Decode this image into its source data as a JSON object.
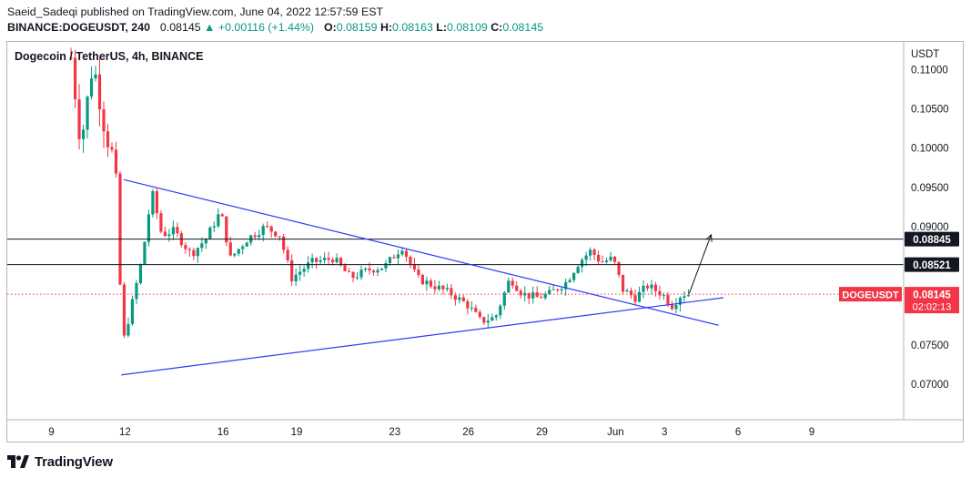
{
  "header": {
    "publisher_line": "Saeid_Sadeqi published on TradingView.com, June 04, 2022 12:57:59 EST",
    "symbol_interval": "BINANCE:DOGEUSDT, 240",
    "last_price": "0.08145",
    "change_arrow": "▲",
    "change": "+0.00116 (+1.44%)",
    "o_label": "O:",
    "o_value": "0.08159",
    "h_label": "H:",
    "h_value": "0.08163",
    "l_label": "L:",
    "l_value": "0.08109",
    "c_label": "C:",
    "c_value": "0.08145"
  },
  "chart_title": "Dogecoin / TetherUS, 4h, BINANCE",
  "footer": {
    "brand": "TradingView"
  },
  "colors": {
    "up": "#089981",
    "down": "#f23645",
    "trendline": "#2f3bf5",
    "hline": "#131722",
    "price_line": "#f23645",
    "axis_text": "#131722",
    "border": "#b2b5be"
  },
  "chart_data": {
    "type": "candlestick",
    "title": "Dogecoin / TetherUS, 4h, BINANCE",
    "currency_label": "USDT",
    "y_ticks": [
      "0.11000",
      "0.10500",
      "0.10000",
      "0.09500",
      "0.09000",
      "0.07500",
      "0.07000"
    ],
    "y_range": [
      0.0655,
      0.1135
    ],
    "x_ticks": [
      {
        "label": "9",
        "day": 9
      },
      {
        "label": "12",
        "day": 12
      },
      {
        "label": "16",
        "day": 16
      },
      {
        "label": "19",
        "day": 19
      },
      {
        "label": "23",
        "day": 23
      },
      {
        "label": "26",
        "day": 26
      },
      {
        "label": "29",
        "day": 29
      },
      {
        "label": "Jun",
        "day": 32
      },
      {
        "label": "3",
        "day": 34
      },
      {
        "label": "6",
        "day": 37
      },
      {
        "label": "9",
        "day": 40
      }
    ],
    "x_range": [
      7.2,
      43.75
    ],
    "horizontal_levels": [
      {
        "label": "0.08845",
        "value": 0.08845
      },
      {
        "label": "0.08521",
        "value": 0.08521
      }
    ],
    "current_price": {
      "label": "0.08145",
      "value": 0.08145,
      "symbol": "DOGEUSDT",
      "countdown": "02:02:13"
    },
    "trendlines": [
      {
        "name": "upper",
        "from": {
          "day": 11.95,
          "price": 0.096
        },
        "to": {
          "day": 36.2,
          "price": 0.0775
        }
      },
      {
        "name": "lower",
        "from": {
          "day": 11.85,
          "price": 0.0712
        },
        "to": {
          "day": 36.4,
          "price": 0.081
        }
      }
    ],
    "arrow": {
      "from": {
        "day": 35.0,
        "price": 0.0815
      },
      "to": {
        "day": 35.9,
        "price": 0.089
      }
    },
    "anchors": [
      {
        "day": 9.8,
        "price": 0.1115
      },
      {
        "day": 10.2,
        "price": 0.1005
      },
      {
        "day": 10.7,
        "price": 0.111
      },
      {
        "day": 11.2,
        "price": 0.102
      },
      {
        "day": 11.6,
        "price": 0.098
      },
      {
        "day": 11.9,
        "price": 0.075
      },
      {
        "day": 12.2,
        "price": 0.079
      },
      {
        "day": 12.7,
        "price": 0.086
      },
      {
        "day": 13.1,
        "price": 0.0945
      },
      {
        "day": 13.5,
        "price": 0.089
      },
      {
        "day": 14.0,
        "price": 0.0895
      },
      {
        "day": 14.7,
        "price": 0.0865
      },
      {
        "day": 15.3,
        "price": 0.0885
      },
      {
        "day": 15.9,
        "price": 0.092
      },
      {
        "day": 16.3,
        "price": 0.086
      },
      {
        "day": 17.0,
        "price": 0.0885
      },
      {
        "day": 17.7,
        "price": 0.09
      },
      {
        "day": 18.3,
        "price": 0.089
      },
      {
        "day": 18.8,
        "price": 0.0835
      },
      {
        "day": 19.6,
        "price": 0.0855
      },
      {
        "day": 20.5,
        "price": 0.086
      },
      {
        "day": 21.2,
        "price": 0.0835
      },
      {
        "day": 21.9,
        "price": 0.0845
      },
      {
        "day": 22.6,
        "price": 0.085
      },
      {
        "day": 23.3,
        "price": 0.0875
      },
      {
        "day": 23.9,
        "price": 0.0835
      },
      {
        "day": 24.6,
        "price": 0.0825
      },
      {
        "day": 25.3,
        "price": 0.0815
      },
      {
        "day": 26.0,
        "price": 0.08
      },
      {
        "day": 26.5,
        "price": 0.078
      },
      {
        "day": 27.1,
        "price": 0.0785
      },
      {
        "day": 27.7,
        "price": 0.0835
      },
      {
        "day": 28.2,
        "price": 0.0815
      },
      {
        "day": 28.8,
        "price": 0.081
      },
      {
        "day": 29.3,
        "price": 0.0815
      },
      {
        "day": 30.0,
        "price": 0.083
      },
      {
        "day": 30.5,
        "price": 0.0855
      },
      {
        "day": 31.0,
        "price": 0.087
      },
      {
        "day": 31.4,
        "price": 0.0855
      },
      {
        "day": 31.9,
        "price": 0.086
      },
      {
        "day": 32.3,
        "price": 0.082
      },
      {
        "day": 32.8,
        "price": 0.081
      },
      {
        "day": 33.3,
        "price": 0.0825
      },
      {
        "day": 33.9,
        "price": 0.0815
      },
      {
        "day": 34.3,
        "price": 0.08
      },
      {
        "day": 34.7,
        "price": 0.0815
      },
      {
        "day": 35.0,
        "price": 0.08145
      }
    ],
    "candle_step_days": 0.1667,
    "note": "Approximate 4-hour OHLC path of DOGEUSDT read from the chart; candle bodies follow the anchor prices."
  }
}
